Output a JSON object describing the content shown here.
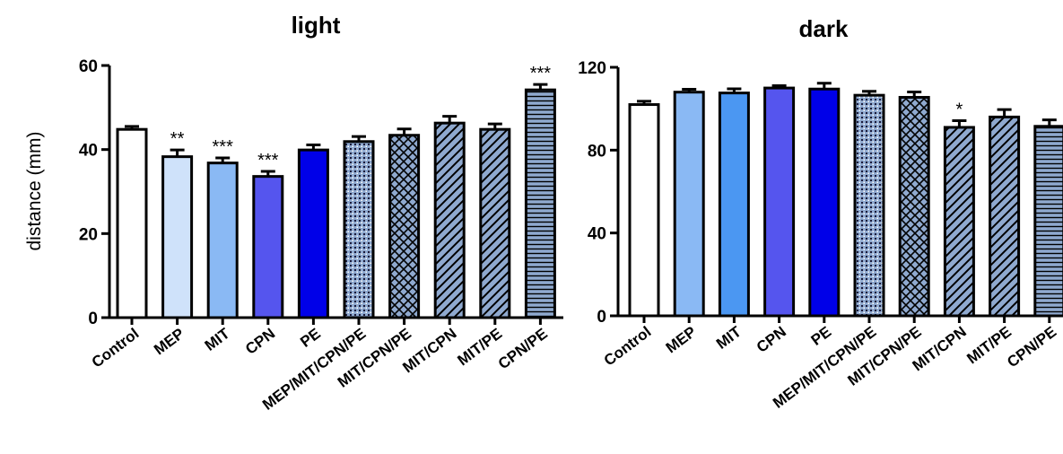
{
  "ylabel": "distance (mm)",
  "chart_data": [
    {
      "type": "bar",
      "title": "light",
      "ylabel": "distance (mm)",
      "ylim": [
        0,
        60
      ],
      "yticks": [
        0,
        20,
        40,
        60
      ],
      "categories": [
        "Control",
        "MEP",
        "MIT",
        "CPN",
        "PE",
        "MEP/MIT/CPN/PE",
        "MIT/CPN/PE",
        "MIT/CPN",
        "MIT/PE",
        "CPN/PE"
      ],
      "values": [
        44.8,
        38.3,
        36.8,
        33.6,
        39.9,
        41.9,
        43.4,
        46.3,
        44.8,
        54.2
      ],
      "errors": [
        0.7,
        1.6,
        1.2,
        1.2,
        1.2,
        1.2,
        1.5,
        1.6,
        1.3,
        1.3
      ],
      "significance": [
        "",
        "**",
        "***",
        "***",
        "",
        "",
        "",
        "",
        "",
        "***"
      ],
      "fills": [
        "#ffffff",
        "#cfe2fa",
        "#8ab9f4",
        "#5555ee",
        "#0000e8",
        "#8fa9cf",
        "#8fa9cf",
        "#8fa9cf",
        "#8fa9cf",
        "#8fa9cf"
      ],
      "patterns": [
        "none",
        "none",
        "none",
        "none",
        "none",
        "dots",
        "crosshatch",
        "diagonal",
        "diagonal",
        "horizontal"
      ]
    },
    {
      "type": "bar",
      "title": "dark",
      "ylabel": "",
      "ylim": [
        0,
        120
      ],
      "yticks": [
        0,
        40,
        80,
        120
      ],
      "categories": [
        "Control",
        "MEP",
        "MIT",
        "CPN",
        "PE",
        "MEP/MIT/CPN/PE",
        "MIT/CPN/PE",
        "MIT/CPN",
        "MIT/PE",
        "CPN/PE"
      ],
      "values": [
        102,
        108,
        107.6,
        110,
        109.5,
        106.5,
        105.5,
        91,
        96,
        91.5
      ],
      "errors": [
        1.6,
        1.4,
        2.0,
        1.1,
        2.8,
        1.9,
        2.6,
        3.2,
        3.6,
        3.1
      ],
      "significance": [
        "",
        "",
        "",
        "",
        "",
        "",
        "",
        "*",
        "",
        ""
      ],
      "fills": [
        "#ffffff",
        "#8ab9f4",
        "#4b97f2",
        "#5555ee",
        "#0000e8",
        "#8fa9cf",
        "#8fa9cf",
        "#8fa9cf",
        "#8fa9cf",
        "#8fa9cf"
      ],
      "patterns": [
        "none",
        "none",
        "none",
        "none",
        "none",
        "dots",
        "crosshatch",
        "diagonal",
        "diagonal",
        "horizontal"
      ]
    }
  ]
}
